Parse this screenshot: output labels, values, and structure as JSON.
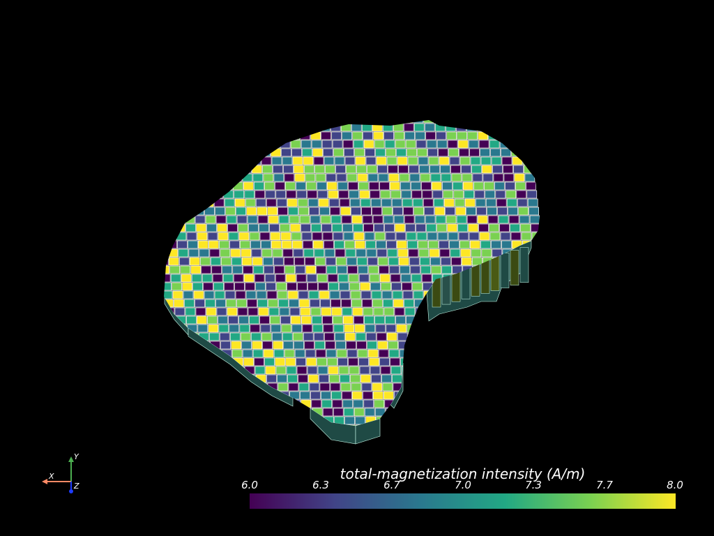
{
  "scene": {
    "colormap": "viridis",
    "cell_edge_color": "#ffffff",
    "background": "#000000"
  },
  "colorbar": {
    "title": "total-magnetization intensity (A/m)",
    "range": [
      6.0,
      8.0
    ],
    "ticks": [
      "6.0",
      "6.3",
      "6.7",
      "7.0",
      "7.3",
      "7.7",
      "8.0"
    ],
    "colors": [
      "#440154",
      "#414487",
      "#2a788e",
      "#22a884",
      "#7ad151",
      "#fde725"
    ]
  },
  "axes_widget": {
    "x_label": "X",
    "y_label": "Y",
    "z_label": "Z",
    "x_color": "#ff8a65",
    "y_color": "#4caf50",
    "z_color": "#1e3cff"
  }
}
